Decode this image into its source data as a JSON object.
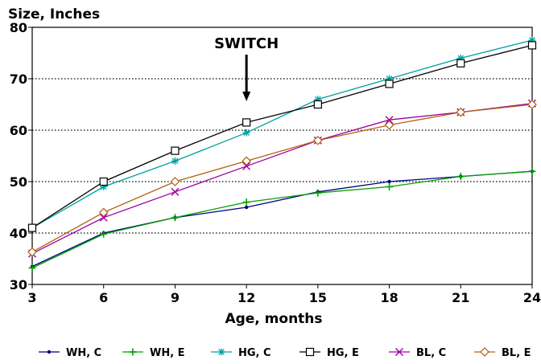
{
  "chart_data": {
    "type": "line",
    "ylabel": "Size, Inches",
    "xlabel": "Age, months",
    "x": [
      3,
      6,
      9,
      12,
      15,
      18,
      21,
      24
    ],
    "x_ticks": [
      "3",
      "6",
      "9",
      "12",
      "15",
      "18",
      "21",
      "24"
    ],
    "y_ticks": [
      "30",
      "40",
      "50",
      "60",
      "70",
      "80"
    ],
    "xlim": [
      3,
      24
    ],
    "ylim": [
      30,
      80
    ],
    "grid": "horizontal dotted",
    "legend_position": "bottom",
    "annotation": {
      "text": "SWITCH",
      "x": 12
    },
    "series": [
      {
        "name": "WH, C",
        "color": "#000080",
        "marker": "dot",
        "values": [
          33.5,
          40,
          43,
          45,
          48,
          50,
          51,
          52
        ]
      },
      {
        "name": "WH, E",
        "color": "#00a000",
        "marker": "plus",
        "values": [
          33.2,
          39.8,
          43,
          46,
          47.8,
          49,
          51,
          52
        ]
      },
      {
        "name": "HG, C",
        "color": "#00a0a0",
        "marker": "asterisk",
        "values": [
          41,
          49,
          54,
          59.5,
          66,
          70,
          74,
          77.5
        ]
      },
      {
        "name": "HG, E",
        "color": "#000000",
        "marker": "square",
        "values": [
          41,
          50,
          56,
          61.5,
          65,
          69,
          73,
          76.5
        ]
      },
      {
        "name": "BL, C",
        "color": "#a000a0",
        "marker": "x",
        "values": [
          36,
          43,
          48,
          53,
          58,
          62,
          63.5,
          65.2
        ]
      },
      {
        "name": "BL, E",
        "color": "#b06010",
        "marker": "diamond",
        "values": [
          36.3,
          44,
          50,
          54,
          58,
          61,
          63.5,
          65
        ]
      }
    ]
  }
}
